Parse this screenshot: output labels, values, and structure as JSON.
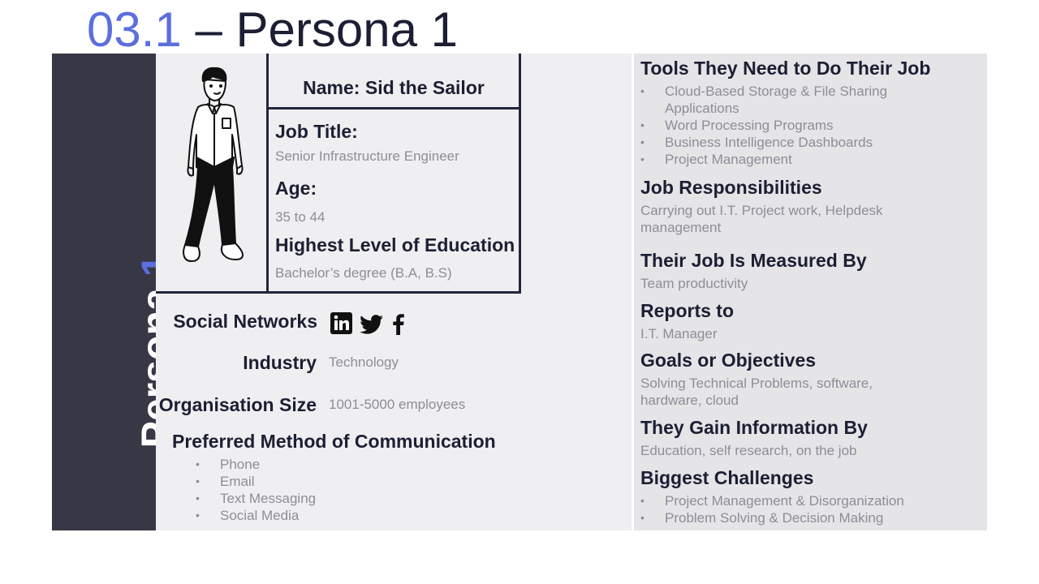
{
  "header": {
    "number": "03.1",
    "title": " – Persona 1"
  },
  "sidebar": {
    "word": "Persona",
    "num": "1"
  },
  "profile": {
    "name": "Name: Sid the Sailor",
    "job_title_label": "Job Title:",
    "job_title": "Senior Infrastructure Engineer",
    "age_label": "Age:",
    "age": "35 to 44",
    "education_label": "Highest Level of Education",
    "education": "Bachelor’s degree (B.A, B.S)"
  },
  "details": {
    "social_label": "Social Networks",
    "social_icons": [
      "linkedin-icon",
      "twitter-icon",
      "facebook-icon"
    ],
    "industry_label": "Industry",
    "industry": "Technology",
    "org_size_label": "Organisation Size",
    "org_size": "1001-5000 employees",
    "communication_label": "Preferred Method of Communication",
    "communication": [
      "Phone",
      "Email",
      "Text Messaging",
      "Social Media"
    ]
  },
  "right": {
    "tools_label": "Tools They Need to Do Their Job",
    "tools": [
      "Cloud-Based Storage & File Sharing Applications",
      "Word Processing Programs",
      "Business Intelligence Dashboards",
      "Project Management"
    ],
    "responsibilities_label": "Job Responsibilities",
    "responsibilities": "Carrying out I.T. Project work, Helpdesk management",
    "measured_label": "Their Job Is Measured By",
    "measured": "Team productivity",
    "reports_label": "Reports to",
    "reports": "I.T. Manager",
    "goals_label": "Goals or Objectives",
    "goals": "Solving Technical Problems, software, hardware, cloud",
    "gain_label": "They Gain Information By",
    "gain": "Education, self research, on the job",
    "challenges_label": "Biggest Challenges",
    "challenges": [
      "Project Management & Disorganization",
      "Problem Solving & Decision Making"
    ]
  },
  "colors": {
    "accent": "#5b6fdd",
    "sidebar": "#373745",
    "left_panel": "#efeff1",
    "right_panel": "#e5e5e8",
    "text": "#1c1f33",
    "muted": "#8d8d98"
  }
}
